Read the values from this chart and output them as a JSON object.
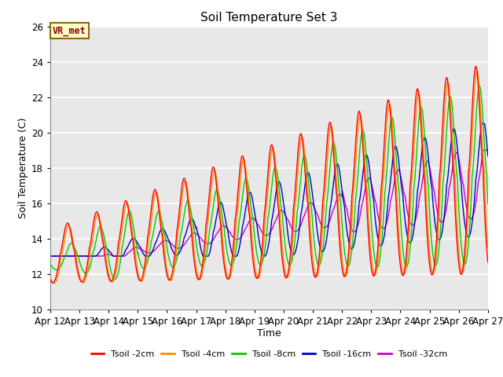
{
  "title": "Soil Temperature Set 3",
  "xlabel": "Time",
  "ylabel": "Soil Temperature (C)",
  "ylim": [
    10,
    26
  ],
  "xlim": [
    0,
    360
  ],
  "x_tick_labels": [
    "Apr 12",
    "Apr 13",
    "Apr 14",
    "Apr 15",
    "Apr 16",
    "Apr 17",
    "Apr 18",
    "Apr 19",
    "Apr 20",
    "Apr 21",
    "Apr 22",
    "Apr 23",
    "Apr 24",
    "Apr 25",
    "Apr 26",
    "Apr 27"
  ],
  "x_tick_positions": [
    0,
    24,
    48,
    72,
    96,
    120,
    144,
    168,
    192,
    216,
    240,
    264,
    288,
    312,
    336,
    360
  ],
  "annotation_text": "VR_met",
  "annotation_color": "#8B0000",
  "annotation_bg": "#FFFFCC",
  "background_color": "#E8E8E8",
  "colors": {
    "Tsoil -2cm": "#FF0000",
    "Tsoil -4cm": "#FF8C00",
    "Tsoil -8cm": "#00CC00",
    "Tsoil -16cm": "#0000CC",
    "Tsoil -32cm": "#CC00CC"
  },
  "legend_labels": [
    "Tsoil -2cm",
    "Tsoil -4cm",
    "Tsoil -8cm",
    "Tsoil -16cm",
    "Tsoil -32cm"
  ]
}
